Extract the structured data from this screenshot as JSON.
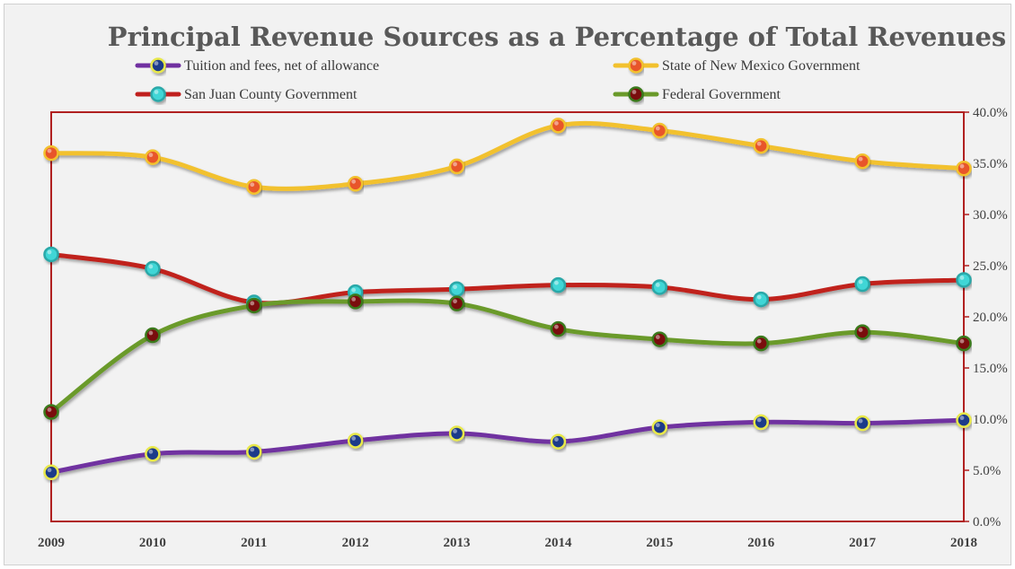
{
  "chart_data": {
    "type": "line",
    "title": "Principal Revenue Sources as a Percentage of Total Revenues",
    "x": [
      "2009",
      "2010",
      "2011",
      "2012",
      "2013",
      "2014",
      "2015",
      "2016",
      "2017",
      "2018"
    ],
    "y_axis": {
      "position": "right",
      "ylim": [
        0,
        40
      ],
      "ticks": [
        "0.0%",
        "5.0%",
        "10.0%",
        "15.0%",
        "20.0%",
        "25.0%",
        "30.0%",
        "35.0%",
        "40.0%"
      ]
    },
    "grid": false,
    "legend": "top",
    "series": [
      {
        "name": "Tuition and fees, net of allowance",
        "color": "#7030a0",
        "marker_fill": "#1f3b8a",
        "marker_ring": "#e8e84a",
        "values": [
          4.8,
          6.6,
          6.8,
          7.9,
          8.6,
          7.8,
          9.2,
          9.7,
          9.6,
          9.9
        ]
      },
      {
        "name": "State of New Mexico Government",
        "color": "#f2c12e",
        "marker_fill": "#e8542a",
        "marker_ring": "#f2c12e",
        "values": [
          36.0,
          35.6,
          32.7,
          33.0,
          34.7,
          38.7,
          38.2,
          36.7,
          35.2,
          34.5
        ]
      },
      {
        "name": "San Juan County Government",
        "color": "#c0201e",
        "marker_fill": "#3fd6d6",
        "marker_ring": "#2aa8a8",
        "values": [
          26.1,
          24.7,
          21.4,
          22.4,
          22.7,
          23.1,
          22.9,
          21.7,
          23.2,
          23.6
        ]
      },
      {
        "name": "Federal Government",
        "color": "#6a9a2a",
        "marker_fill": "#7a0f0f",
        "marker_ring": "#3a7a1a",
        "values": [
          10.7,
          18.2,
          21.1,
          21.5,
          21.3,
          18.8,
          17.8,
          17.4,
          18.5,
          17.4
        ]
      }
    ]
  },
  "frame_color": "#b02020"
}
